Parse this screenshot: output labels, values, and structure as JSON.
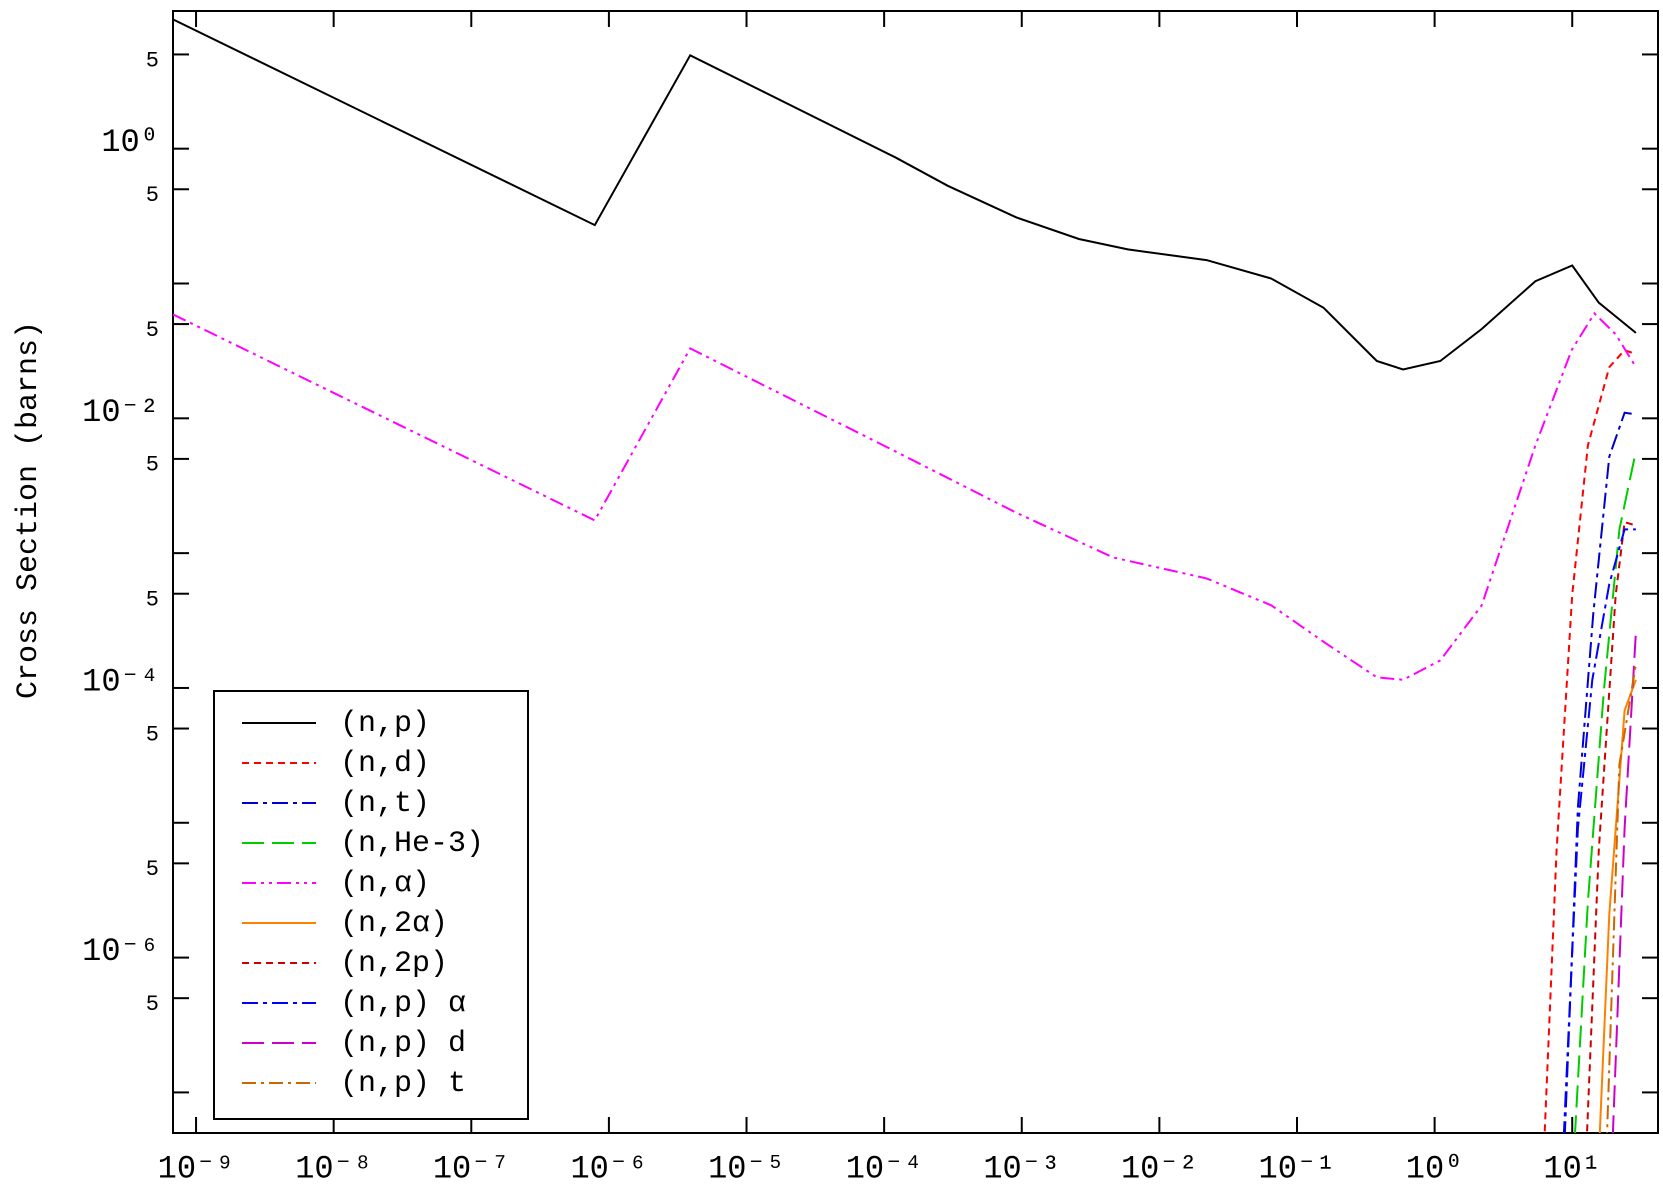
{
  "chart_data": {
    "type": "line",
    "y_label": "Cross Section (barns)",
    "xscale": "log",
    "yscale": "log",
    "xlim": [
      6.8e-10,
      42
    ],
    "ylim": [
      5e-08,
      10.5
    ],
    "xticks": [
      {
        "value": 1e-09,
        "label": "10⁻⁹"
      },
      {
        "value": 1e-08,
        "label": "10⁻⁸"
      },
      {
        "value": 1e-07,
        "label": "10⁻⁷"
      },
      {
        "value": 1e-06,
        "label": "10⁻⁶"
      },
      {
        "value": 1e-05,
        "label": "10⁻⁵"
      },
      {
        "value": 0.0001,
        "label": "10⁻⁴"
      },
      {
        "value": 0.001,
        "label": "10⁻³"
      },
      {
        "value": 0.01,
        "label": "10⁻²"
      },
      {
        "value": 0.1,
        "label": "10⁻¹"
      },
      {
        "value": 1,
        "label": "10⁰"
      },
      {
        "value": 10,
        "label": "10¹"
      }
    ],
    "yticks": [
      5,
      {
        "value": 1,
        "label": "10⁰"
      },
      {
        "value": 0.5,
        "label": "5"
      },
      {
        "value": 0.05,
        "label": "5"
      },
      {
        "value": 0.01,
        "label": "10⁻²"
      },
      {
        "value": 0.005,
        "label": "5"
      },
      {
        "value": 0.0005,
        "label": "5"
      },
      {
        "value": 0.0001,
        "label": "10⁻⁴"
      },
      {
        "value": 5e-05,
        "label": "5"
      },
      {
        "value": 5e-06,
        "label": "5"
      },
      {
        "value": 1e-06,
        "label": "10⁻⁶"
      },
      {
        "value": 5e-07,
        "label": "5"
      }
    ],
    "yminorticks": [
      0.1,
      0.001,
      1e-05,
      1e-07
    ],
    "legend": "lower left",
    "series": [
      {
        "name": "(n,p)",
        "color": "#000000",
        "dash": "none",
        "x": [
          6.8e-10,
          7.9e-07,
          3.9e-06,
          0.00012,
          0.00029,
          0.00091,
          0.0026,
          0.0059,
          0.022,
          0.065,
          0.156,
          0.38,
          0.59,
          1.1,
          2.2,
          5.4,
          10,
          15.6,
          29
        ],
        "values": [
          9.1,
          0.271,
          4.93,
          0.865,
          0.53,
          0.31,
          0.214,
          0.179,
          0.149,
          0.109,
          0.066,
          0.0266,
          0.023,
          0.0266,
          0.046,
          0.104,
          0.136,
          0.072,
          0.043
        ]
      },
      {
        "name": "(n,d)",
        "color": "#ff0000",
        "dash": "7 5",
        "x": [
          5.9,
          7.7,
          10,
          13,
          18.6,
          24,
          29
        ],
        "values": [
          1e-08,
          6.3e-06,
          0.00049,
          0.0063,
          0.024,
          0.032,
          0.03
        ]
      },
      {
        "name": "(n,t)",
        "color": "#0000cc",
        "dash": "16 5 4 5",
        "x": [
          8.3,
          11,
          14.2,
          18.6,
          24,
          29
        ],
        "values": [
          1e-08,
          1.3e-05,
          0.00035,
          0.0052,
          0.011,
          0.0107
        ]
      },
      {
        "name": "(n,He-3)",
        "color": "#00cc00",
        "dash": "22 8",
        "x": [
          9.6,
          13,
          17,
          22,
          29
        ],
        "values": [
          1e-08,
          2.6e-06,
          9.6e-05,
          0.0015,
          0.0057
        ]
      },
      {
        "name": "(n,α)",
        "color": "#ff00ff",
        "dash": "14 5 3 5 3 5",
        "x": [
          6.8e-10,
          7.9e-07,
          3.9e-06,
          0.00012,
          0.00091,
          0.0046,
          0.022,
          0.065,
          0.156,
          0.38,
          0.59,
          1.1,
          2.2,
          5.4,
          9.9,
          14.5,
          20.7,
          29
        ],
        "values": [
          0.059,
          0.00175,
          0.033,
          0.0057,
          0.002,
          0.00093,
          0.00065,
          0.00041,
          0.00022,
          0.00012,
          0.000115,
          0.00016,
          0.00041,
          0.0063,
          0.032,
          0.06,
          0.042,
          0.024
        ]
      },
      {
        "name": "(n,2α)",
        "color": "#ff8000",
        "dash": "none",
        "x": [
          14.8,
          18.6,
          24,
          29
        ],
        "values": [
          1e-08,
          2.1e-06,
          6.8e-05,
          0.000115
        ]
      },
      {
        "name": "(n,2p)",
        "color": "#cc0000",
        "dash": "7 5",
        "x": [
          12,
          15.6,
          20.7,
          24,
          29
        ],
        "values": [
          1e-08,
          6.3e-06,
          0.00049,
          0.0017,
          0.0016
        ]
      },
      {
        "name": "(n,p) α",
        "color": "#0000ff",
        "dash": "16 5 4 5",
        "x": [
          8.1,
          11,
          14,
          18.6,
          24,
          29
        ],
        "values": [
          1e-08,
          9.1e-06,
          0.000115,
          0.00059,
          0.0015,
          0.0015
        ]
      },
      {
        "name": "(n,p) d",
        "color": "#cc00cc",
        "dash": "22 8",
        "x": [
          18.6,
          24,
          29
        ],
        "values": [
          1e-08,
          9.1e-06,
          0.00026
        ]
      },
      {
        "name": "(n,p) t",
        "color": "#cc6600",
        "dash": "14 5 3 5",
        "x": [
          17,
          22,
          29
        ],
        "values": [
          1e-08,
          2.7e-05,
          0.00015
        ]
      }
    ]
  }
}
